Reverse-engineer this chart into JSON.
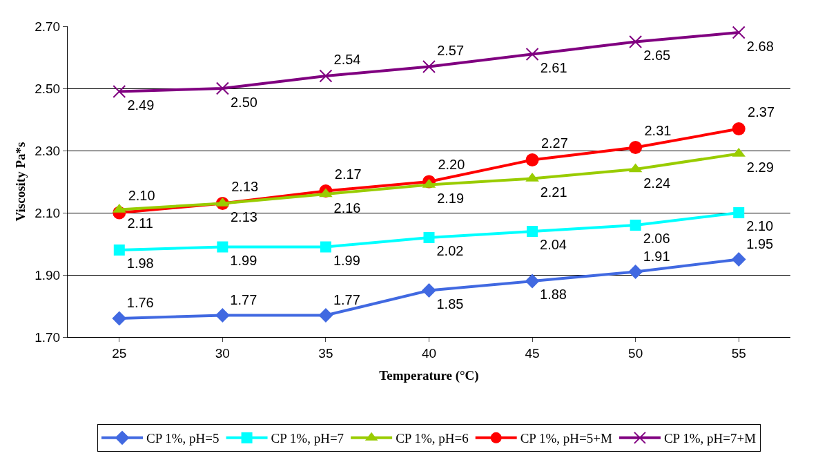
{
  "chart_data": {
    "type": "line",
    "xlabel": "Temperature (°C)",
    "ylabel": "Viscosity Pa*s",
    "categories": [
      "25",
      "30",
      "35",
      "40",
      "45",
      "50",
      "55"
    ],
    "series": [
      {
        "name": "CP 1%, pH=5",
        "color": "#4169e1",
        "marker": "diamond",
        "values": [
          1.76,
          1.77,
          1.77,
          1.85,
          1.88,
          1.91,
          1.95
        ],
        "value_labels": [
          "1.76",
          "1.77",
          "1.77",
          "1.85",
          "1.88",
          "1.91",
          "1.95"
        ]
      },
      {
        "name": "CP 1%, pH=7",
        "color": "#00ffff",
        "marker": "square",
        "values": [
          1.98,
          1.99,
          1.99,
          2.02,
          2.04,
          2.06,
          2.1
        ],
        "value_labels": [
          "1.98",
          "1.99",
          "1.99",
          "2.02",
          "2.04",
          "2.06",
          "2.10"
        ]
      },
      {
        "name": "CP 1%, pH=6",
        "color": "#99cc00",
        "marker": "triangle",
        "values": [
          2.11,
          2.13,
          2.16,
          2.19,
          2.21,
          2.24,
          2.29
        ],
        "value_labels": [
          "2.11",
          "2.13",
          "2.16",
          "2.19",
          "2.21",
          "2.24",
          "2.29"
        ]
      },
      {
        "name": "CP 1%, pH=5+M",
        "color": "#ff0000",
        "marker": "circle",
        "values": [
          2.1,
          2.13,
          2.17,
          2.2,
          2.27,
          2.31,
          2.37
        ],
        "value_labels": [
          "2.10",
          "2.13",
          "2.17",
          "2.20",
          "2.27",
          "2.31",
          "2.37"
        ]
      },
      {
        "name": "CP 1%, pH=7+M",
        "color": "#800080",
        "marker": "cross",
        "values": [
          2.49,
          2.5,
          2.54,
          2.57,
          2.61,
          2.65,
          2.68
        ],
        "value_labels": [
          "2.49",
          "2.50",
          "2.54",
          "2.57",
          "2.61",
          "2.65",
          "2.68"
        ]
      }
    ],
    "ylim": [
      1.7,
      2.7
    ],
    "yticks": [
      {
        "value": 1.7,
        "label": "1.70"
      },
      {
        "value": 1.9,
        "label": "1.90"
      },
      {
        "value": 2.1,
        "label": "2.10"
      },
      {
        "value": 2.3,
        "label": "2.30"
      },
      {
        "value": 2.5,
        "label": "2.50"
      },
      {
        "value": 2.7,
        "label": "2.70"
      }
    ],
    "grid": "y",
    "legend": "bottom",
    "line_style": "solid"
  }
}
